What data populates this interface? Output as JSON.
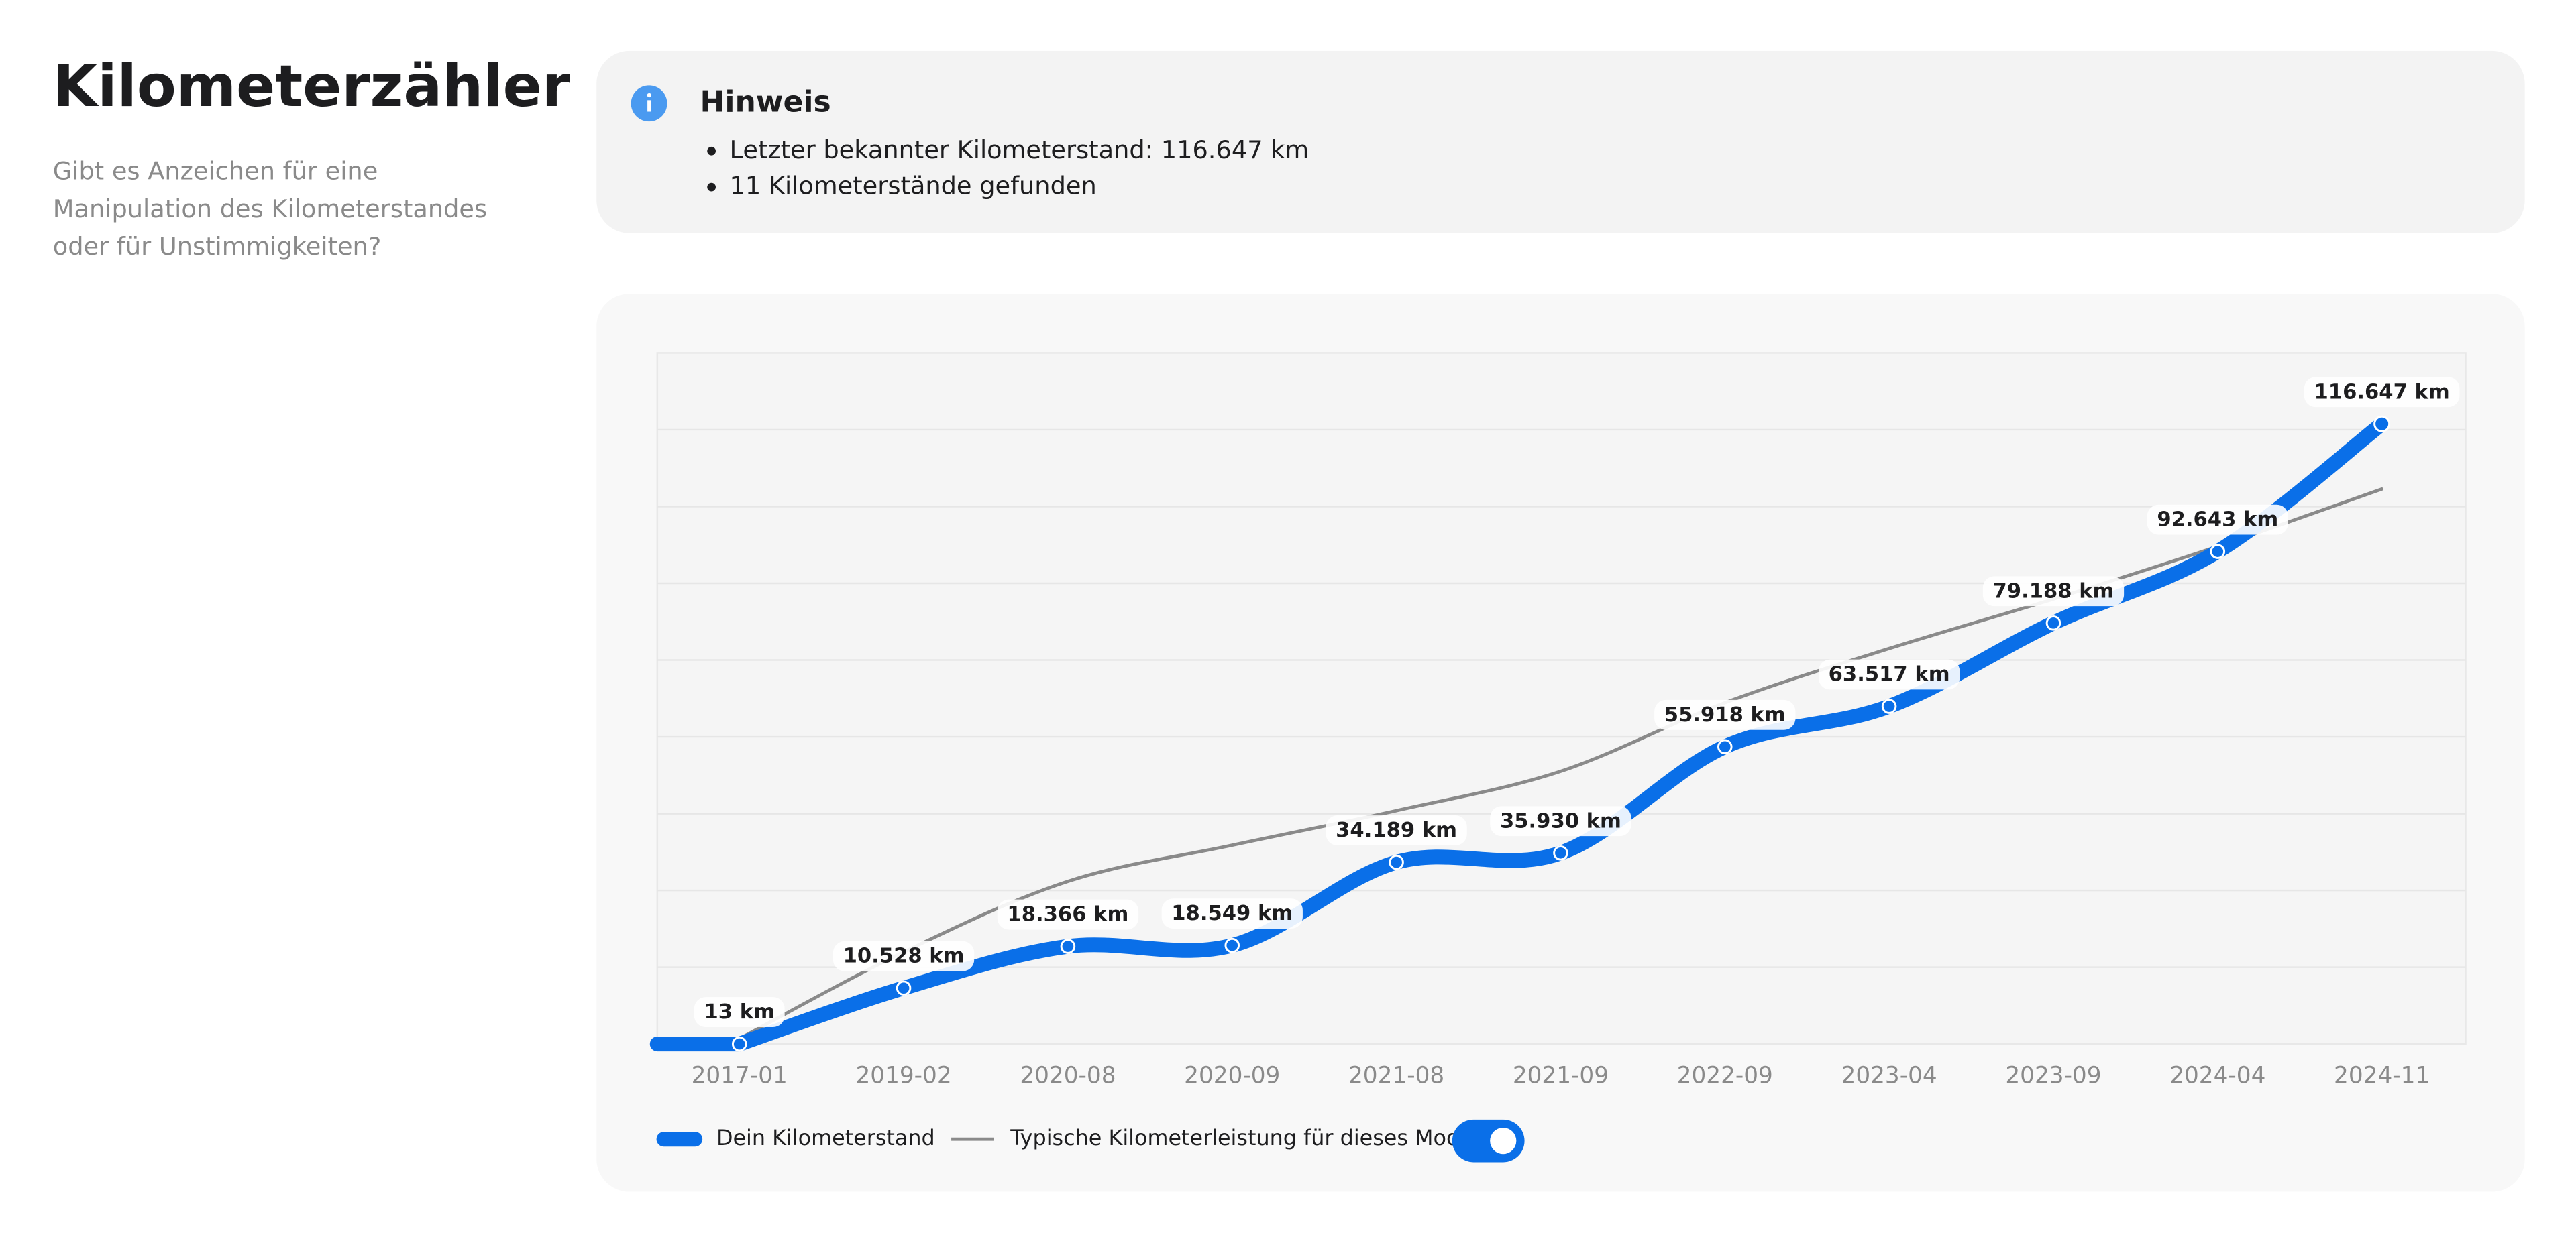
{
  "header": {
    "title": "Kilometerzähler",
    "description": [
      "Gibt es Anzeichen für eine",
      "Manipulation des Kilometerstandes",
      "oder für Unstimmigkeiten?"
    ]
  },
  "notice": {
    "title": "Hinweis",
    "items": [
      "Letzter bekannter Kilometerstand: 116.647 km",
      "11 Kilometerstände gefunden"
    ]
  },
  "chart_data": {
    "type": "line",
    "categories": [
      "2017-01",
      "2019-02",
      "2020-08",
      "2020-09",
      "2021-08",
      "2021-09",
      "2022-09",
      "2023-04",
      "2023-09",
      "2024-04",
      "2024-11"
    ],
    "series": [
      {
        "name": "Dein Kilometerstand",
        "color": "#0a6fe8",
        "values": [
          13,
          10528,
          18366,
          18549,
          34189,
          35930,
          55918,
          63517,
          79188,
          92643,
          116647
        ],
        "value_labels": [
          "13 km",
          "10.528 km",
          "18.366 km",
          "18.549 km",
          "34.189 km",
          "35.930 km",
          "55.918 km",
          "63.517 km",
          "79.188 km",
          "92.643 km",
          "116.647 km"
        ]
      },
      {
        "name": "Typische Kilometerleistung für dieses Modell",
        "color": "#8a8a8a",
        "values": [
          1000,
          17300,
          30600,
          37400,
          43900,
          51300,
          64200,
          74400,
          83700,
          93600,
          104400
        ]
      }
    ],
    "ylim": [
      0,
      130000
    ],
    "grid": true
  }
}
